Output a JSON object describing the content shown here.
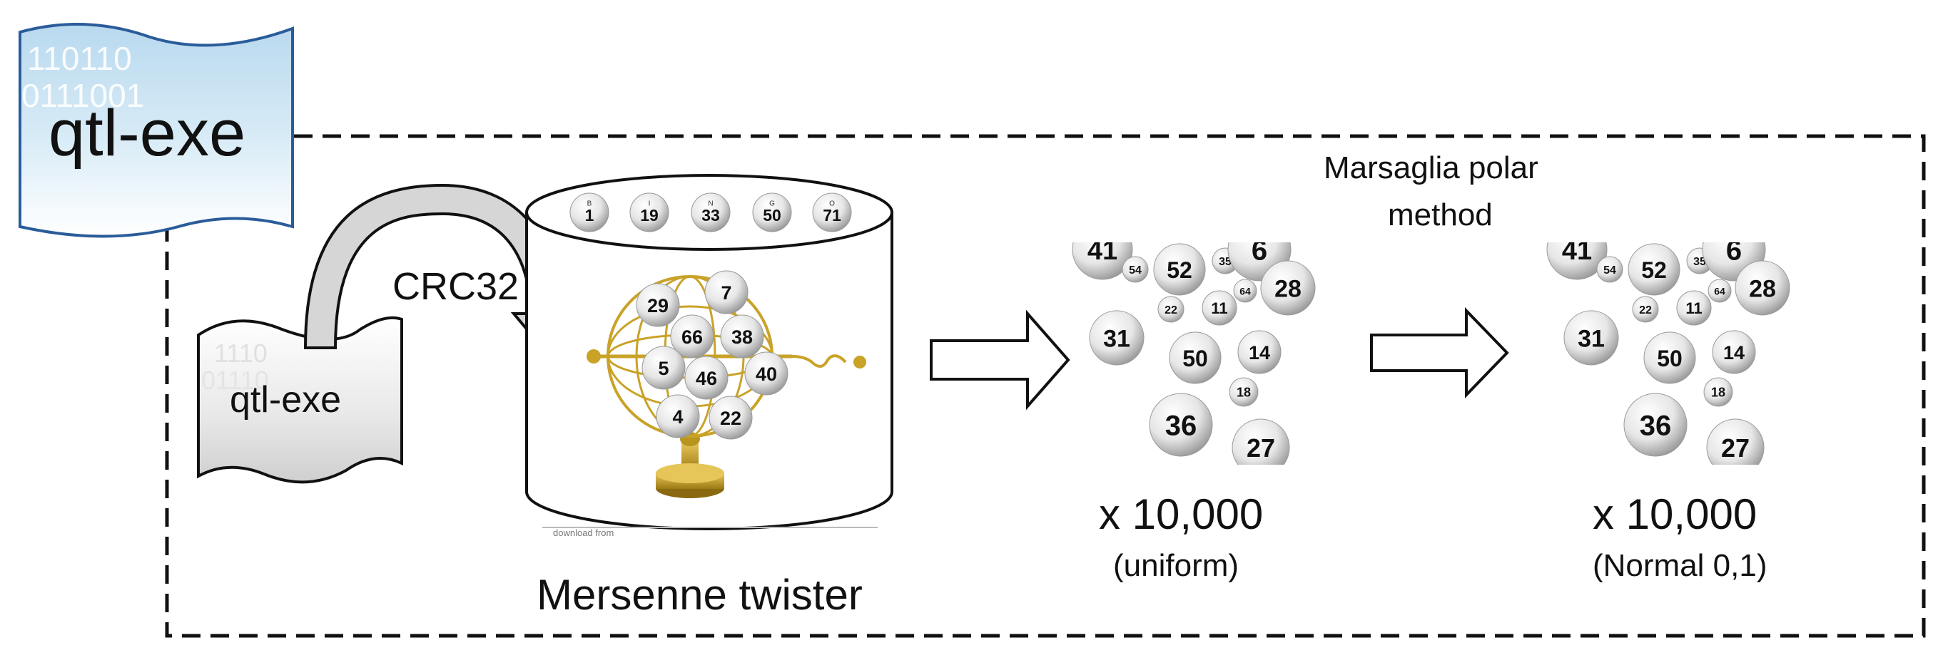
{
  "banner": {
    "title": "qtl-exe",
    "binary_bg": [
      "110110",
      "0111001"
    ]
  },
  "source_doc": {
    "label": "qtl-exe",
    "binary_bg": [
      "1110",
      "01110"
    ]
  },
  "hash": {
    "label": "CRC32"
  },
  "prng": {
    "label": "Mersenne twister",
    "top_balls": [
      {
        "letter": "B",
        "number": "1"
      },
      {
        "letter": "I",
        "number": "19"
      },
      {
        "letter": "N",
        "number": "33"
      },
      {
        "letter": "G",
        "number": "50"
      },
      {
        "letter": "O",
        "number": "71"
      }
    ],
    "cage_balls": [
      "29",
      "7",
      "66",
      "38",
      "5",
      "46",
      "40",
      "4",
      "22"
    ],
    "credit": "download from"
  },
  "uniform": {
    "count": "x 10,000",
    "kind": "(uniform)",
    "balls": [
      "41",
      "54",
      "52",
      "35",
      "6",
      "28",
      "22",
      "11",
      "64",
      "31",
      "50",
      "14",
      "18",
      "36",
      "27"
    ]
  },
  "transform": {
    "label_line1": "Marsaglia polar",
    "label_line2": "method"
  },
  "normal": {
    "count": "x 10,000",
    "kind": "(Normal 0,1)",
    "balls": [
      "41",
      "54",
      "52",
      "35",
      "6",
      "28",
      "22",
      "11",
      "64",
      "31",
      "50",
      "14",
      "18",
      "36",
      "27"
    ]
  },
  "colors": {
    "banner_top": "#cfe6f6",
    "banner_bottom": "#ffffff",
    "gold": "#c9a227",
    "border": "#111111"
  }
}
